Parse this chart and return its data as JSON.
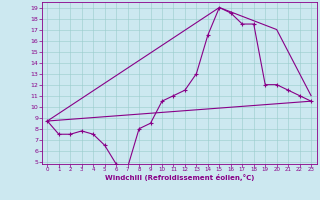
{
  "xlabel": "Windchill (Refroidissement éolien,°C)",
  "bg_color": "#cce8f0",
  "line_color": "#880088",
  "xlim": [
    -0.5,
    23.5
  ],
  "ylim": [
    4.8,
    19.5
  ],
  "xticks": [
    0,
    1,
    2,
    3,
    4,
    5,
    6,
    7,
    8,
    9,
    10,
    11,
    12,
    13,
    14,
    15,
    16,
    17,
    18,
    19,
    20,
    21,
    22,
    23
  ],
  "yticks": [
    5,
    6,
    7,
    8,
    9,
    10,
    11,
    12,
    13,
    14,
    15,
    16,
    17,
    18,
    19
  ],
  "line1_x": [
    0,
    1,
    2,
    3,
    4,
    5,
    6,
    7,
    8,
    9,
    10,
    11,
    12,
    13,
    14,
    15,
    16,
    17,
    18,
    19,
    20,
    21,
    22,
    23
  ],
  "line1_y": [
    8.7,
    7.5,
    7.5,
    7.8,
    7.5,
    6.5,
    4.8,
    4.5,
    8.0,
    8.5,
    10.5,
    11.0,
    11.5,
    13.0,
    16.5,
    19.0,
    18.5,
    17.5,
    17.5,
    12.0,
    12.0,
    11.5,
    11.0,
    10.5
  ],
  "line2_x": [
    0,
    23
  ],
  "line2_y": [
    8.7,
    10.5
  ],
  "line3_x": [
    0,
    15,
    20,
    23
  ],
  "line3_y": [
    8.7,
    19.0,
    17.0,
    11.0
  ]
}
